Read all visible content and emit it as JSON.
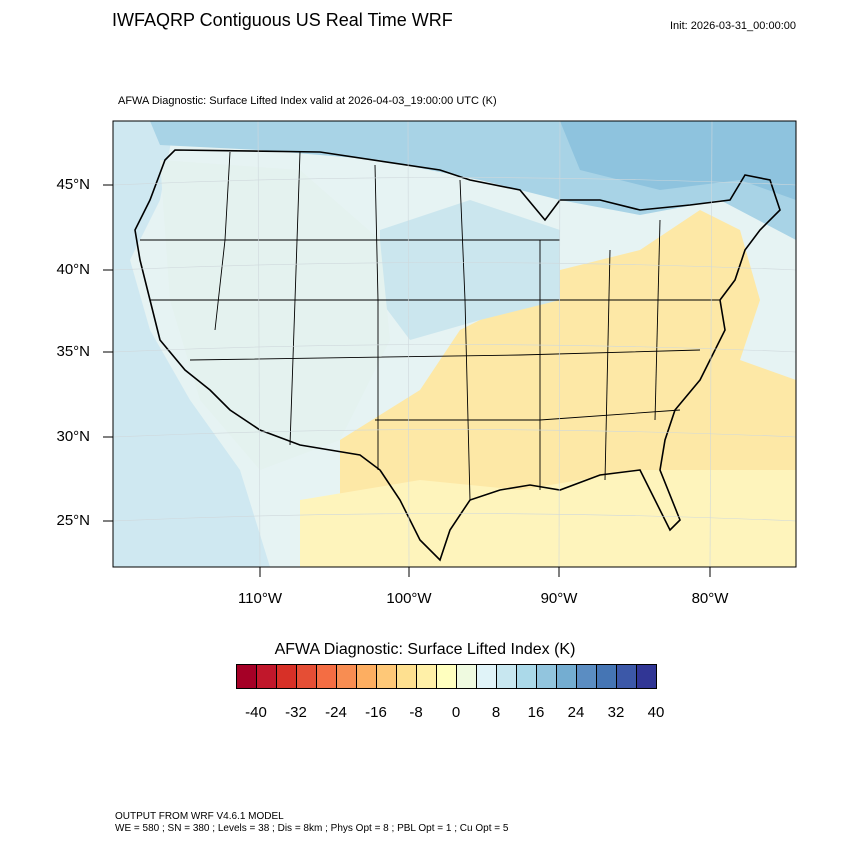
{
  "header": {
    "title": "IWFAQRP Contiguous US Real Time WRF",
    "init": "Init: 2026-03-31_00:00:00",
    "subtitle": "AFWA Diagnostic: Surface Lifted Index valid at 2026-04-03_19:00:00 UTC   (K)"
  },
  "map": {
    "lat_labels": [
      "45°N",
      "40°N",
      "35°N",
      "30°N",
      "25°N"
    ],
    "lon_labels": [
      "110°W",
      "100°W",
      "90°W",
      "80°W"
    ],
    "colors": {
      "ocean_east": "#fdf3bd",
      "ocean_west": "#cfe8f1",
      "gulf": "#fef4bc",
      "canada": "#8ec3de",
      "warm_region": "#fde4a2",
      "cool_region": "#b7ddeb",
      "border": "#000000"
    }
  },
  "colorbar": {
    "title": "AFWA Diagnostic: Surface Lifted Index  (K)",
    "colors": [
      "#a50026",
      "#c1172b",
      "#d73027",
      "#e54e35",
      "#f46d43",
      "#f88d52",
      "#fdae61",
      "#fec878",
      "#fee090",
      "#fff0a8",
      "#ffffbf",
      "#effae0",
      "#e0f3f8",
      "#c8e7f0",
      "#abd9e9",
      "#92c5de",
      "#74add1",
      "#5b8dc2",
      "#4575b4",
      "#3c58a8",
      "#313695"
    ],
    "labels": [
      "-40",
      "-32",
      "-24",
      "-16",
      "-8",
      "0",
      "8",
      "16",
      "24",
      "32",
      "40"
    ]
  },
  "footer": {
    "line1": "OUTPUT FROM WRF V4.6.1 MODEL",
    "line2": "WE = 580 ; SN = 380 ; Levels = 38 ; Dis = 8km ; Phys Opt = 8 ; PBL Opt = 1 ; Cu Opt = 5"
  }
}
